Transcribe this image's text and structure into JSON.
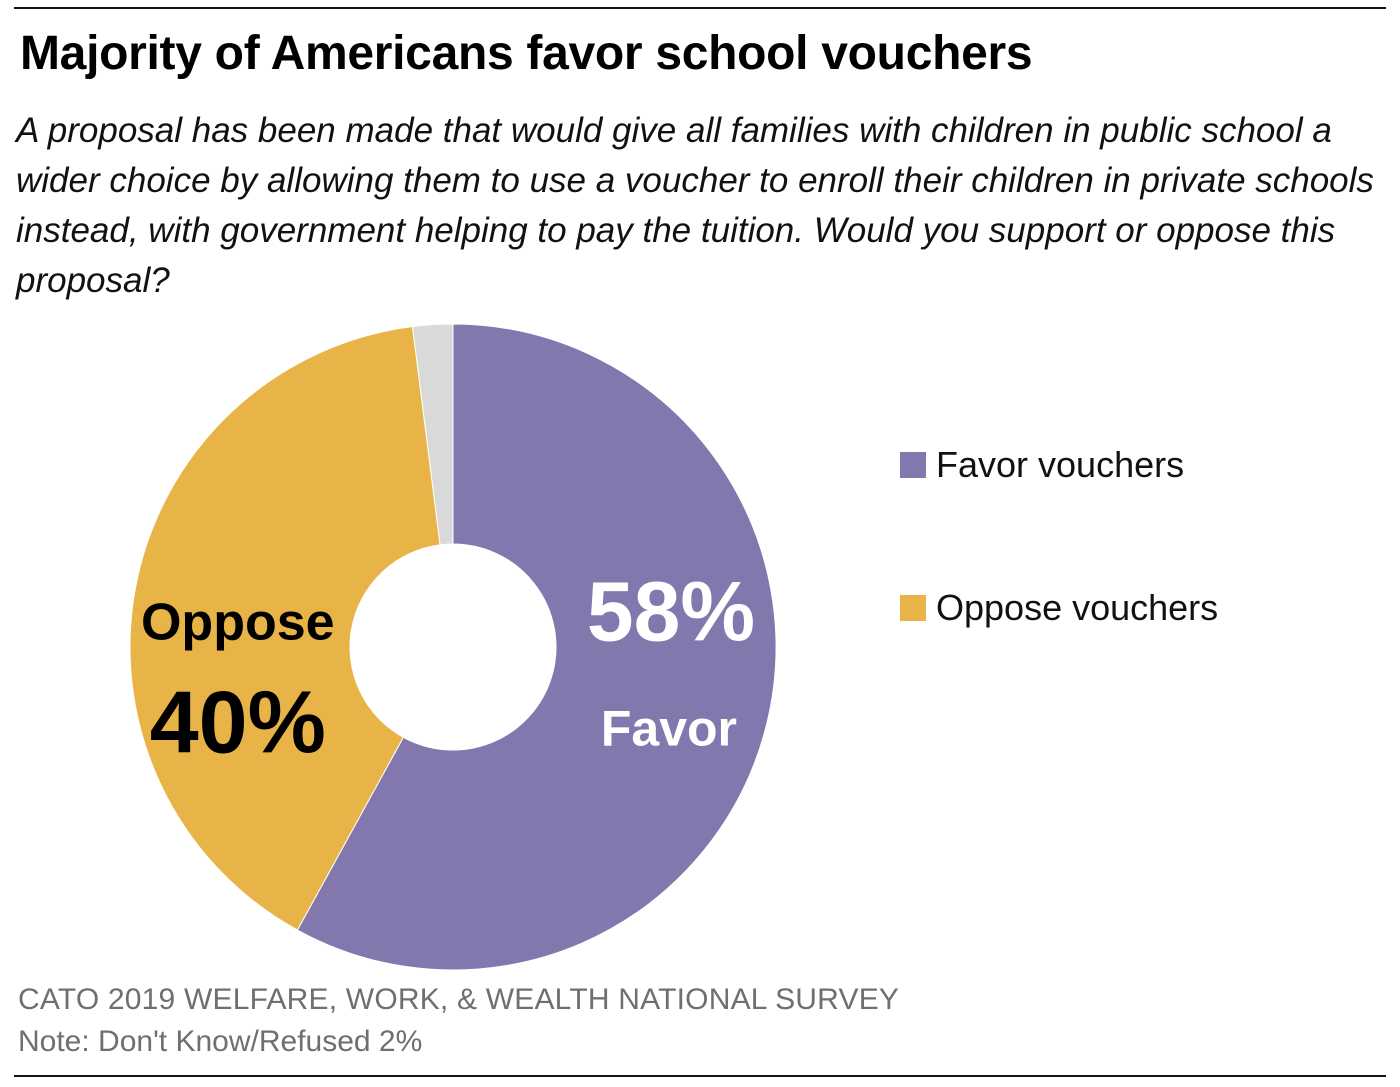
{
  "header": {
    "title": "Majority of Americans favor school vouchers",
    "question": "A proposal has been made that would give all families with children in public school a wider choice by allowing them to use a voucher to enroll their children in private schools instead, with government helping to pay the tuition. Would you support or oppose this proposal?"
  },
  "chart_data": {
    "type": "pie",
    "title": "Majority of Americans favor school vouchers",
    "donut": true,
    "slices": [
      {
        "label": "Favor vouchers",
        "value": 58,
        "color": "#8278ad",
        "data_label_value": "58%",
        "data_label_name": "Favor",
        "label_color": "#ffffff"
      },
      {
        "label": "Oppose vouchers",
        "value": 40,
        "color": "#e8b447",
        "data_label_value": "40%",
        "data_label_name": "Oppose",
        "label_color": "#000000"
      },
      {
        "label": "",
        "value": 2,
        "color": "#d9d9d9"
      }
    ],
    "legend": {
      "placement": "right",
      "entries": [
        {
          "label": "Favor vouchers",
          "color": "#8278ad"
        },
        {
          "label": "Oppose vouchers",
          "color": "#e8b447"
        }
      ]
    }
  },
  "footer": {
    "source": "CATO 2019 WELFARE, WORK, & WEALTH NATIONAL SURVEY",
    "note": "Note: Don't Know/Refused 2%"
  }
}
